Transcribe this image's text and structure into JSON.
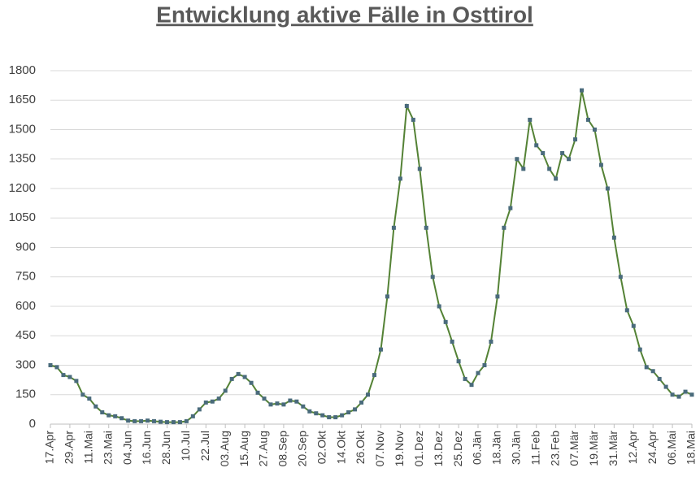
{
  "chart_data": {
    "type": "line",
    "title": "Entwicklung aktive Fälle in Osttirol",
    "categories": [
      "17.Apr",
      null,
      null,
      "29.Apr",
      null,
      null,
      "11.Mai",
      null,
      null,
      "23.Mai",
      null,
      null,
      "04.Jun",
      null,
      null,
      "16.Jun",
      null,
      null,
      "28.Jun",
      null,
      null,
      "10.Jul",
      null,
      null,
      "22.Jul",
      null,
      null,
      "03.Aug",
      null,
      null,
      "15.Aug",
      null,
      null,
      "27.Aug",
      null,
      null,
      "08.Sep",
      null,
      null,
      "20.Sep",
      null,
      null,
      "02.Okt",
      null,
      null,
      "14.Okt",
      null,
      null,
      "26.Okt",
      null,
      null,
      "07.Nov",
      null,
      null,
      "19.Nov",
      null,
      null,
      "01.Dez",
      null,
      null,
      "13.Dez",
      null,
      null,
      "25.Dez",
      null,
      null,
      "06.Jän",
      null,
      null,
      "18.Jän",
      null,
      null,
      "30.Jän",
      null,
      null,
      "11.Feb",
      null,
      null,
      "23.Feb",
      null,
      null,
      "07.Mär",
      null,
      null,
      "19.Mär",
      null,
      null,
      "31.Mär",
      null,
      null,
      "12.Apr",
      null,
      null,
      "24.Apr",
      null,
      null,
      "06.Mai",
      null,
      null,
      "18.Mai"
    ],
    "series": [
      {
        "name": "Aktive Fälle",
        "color": "#548235",
        "marker_color": "#4a6b7c",
        "values": [
          300,
          290,
          250,
          240,
          220,
          150,
          130,
          90,
          60,
          45,
          40,
          30,
          18,
          15,
          15,
          18,
          15,
          12,
          10,
          10,
          10,
          15,
          40,
          75,
          110,
          115,
          130,
          170,
          230,
          255,
          240,
          210,
          160,
          130,
          100,
          105,
          100,
          120,
          115,
          90,
          65,
          55,
          45,
          35,
          35,
          45,
          60,
          75,
          110,
          150,
          250,
          380,
          650,
          1000,
          1250,
          1620,
          1550,
          1300,
          1000,
          750,
          600,
          520,
          420,
          320,
          230,
          200,
          260,
          300,
          420,
          650,
          1000,
          1100,
          1350,
          1300,
          1550,
          1420,
          1380,
          1300,
          1250,
          1380,
          1350,
          1450,
          1700,
          1550,
          1500,
          1320,
          1200,
          950,
          750,
          580,
          500,
          380,
          290,
          270,
          230,
          190,
          150,
          140,
          165,
          150
        ]
      }
    ],
    "ylim": [
      0,
      1800
    ],
    "yticks": [
      0,
      150,
      300,
      450,
      600,
      750,
      900,
      1050,
      1200,
      1350,
      1500,
      1650,
      1800
    ],
    "grid": true
  }
}
